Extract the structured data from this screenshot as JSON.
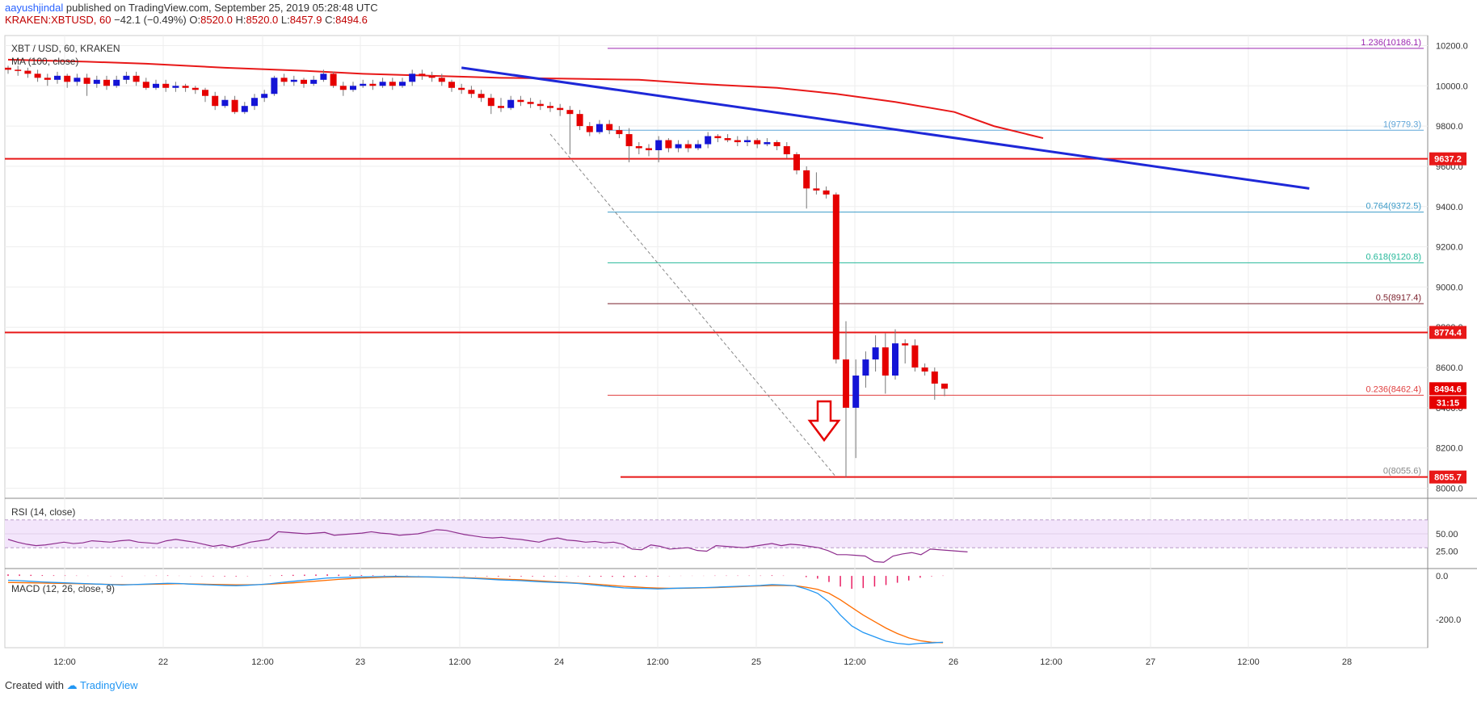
{
  "header": {
    "author": "aayushjindal",
    "published": "published on TradingView.com, September 25, 2019 05:28:48 UTC",
    "symbol": "KRAKEN:XBTUSD, 60",
    "change": "−42.1 (−0.49%)",
    "o_label": "O:",
    "o_value": "8520.0",
    "h_label": "H:",
    "h_value": "8520.0",
    "l_label": "L:",
    "l_value": "8457.9",
    "c_label": "C:",
    "c_value": "8494.6"
  },
  "footer": {
    "created_with": "Created with",
    "brand": "TradingView"
  },
  "colors": {
    "up": "#1414d6",
    "down": "#e50000",
    "ma": "#e81818",
    "trendline": "#1e28d8",
    "resistance": "#e81818",
    "rsi": "#8e2e8e",
    "rsi_band": "#f3e5fb",
    "macd": "#2196f3",
    "signal": "#ff6d00",
    "hist": "#e91e63"
  },
  "chart_data": [
    {
      "type": "candlestick",
      "title": "XBT / USD, 60, KRAKEN",
      "indicator_label": "MA (100, close)",
      "x_ticks": [
        "12:00",
        "22",
        "12:00",
        "23",
        "12:00",
        "24",
        "12:00",
        "25",
        "12:00",
        "26",
        "12:00",
        "27",
        "12:00",
        "28"
      ],
      "ylim": [
        7950,
        10250
      ],
      "y_ticks": [
        10200,
        10000,
        9800,
        9600,
        9400,
        9200,
        9000,
        8800,
        8600,
        8400,
        8200,
        8000
      ],
      "y_tick_labels": [
        "10200.0",
        "10000.0",
        "9800.0",
        "9600.0",
        "9400.0",
        "9200.0",
        "9000.0",
        "8800.0",
        "8600.0",
        "8400.0",
        "8200.0",
        "8000.0"
      ],
      "candles": [
        [
          10090,
          10080,
          10100,
          10060
        ],
        [
          10080,
          10075,
          10100,
          10050
        ],
        [
          10075,
          10060,
          10090,
          10040
        ],
        [
          10060,
          10040,
          10080,
          10020
        ],
        [
          10040,
          10030,
          10060,
          10000
        ],
        [
          10030,
          10050,
          10070,
          10010
        ],
        [
          10050,
          10020,
          10060,
          9990
        ],
        [
          10020,
          10040,
          10060,
          10000
        ],
        [
          10040,
          10010,
          10060,
          9950
        ],
        [
          10010,
          10030,
          10050,
          9990
        ],
        [
          10030,
          10000,
          10050,
          9980
        ],
        [
          10000,
          10030,
          10050,
          9990
        ],
        [
          10030,
          10050,
          10070,
          10010
        ],
        [
          10050,
          10020,
          10070,
          10000
        ],
        [
          10020,
          9990,
          10040,
          9980
        ],
        [
          9990,
          10010,
          10030,
          9980
        ],
        [
          10010,
          9990,
          10030,
          9970
        ],
        [
          9990,
          10000,
          10020,
          9970
        ],
        [
          10000,
          9990,
          10010,
          9970
        ],
        [
          9990,
          9980,
          10000,
          9960
        ],
        [
          9980,
          9950,
          9990,
          9920
        ],
        [
          9950,
          9900,
          9970,
          9880
        ],
        [
          9900,
          9930,
          9950,
          9890
        ],
        [
          9930,
          9870,
          9950,
          9860
        ],
        [
          9870,
          9900,
          9920,
          9860
        ],
        [
          9900,
          9940,
          9960,
          9880
        ],
        [
          9940,
          9960,
          9980,
          9920
        ],
        [
          9960,
          10040,
          10050,
          9950
        ],
        [
          10040,
          10020,
          10060,
          10000
        ],
        [
          10020,
          10030,
          10050,
          10000
        ],
        [
          10030,
          10010,
          10040,
          9990
        ],
        [
          10010,
          10030,
          10050,
          10000
        ],
        [
          10030,
          10060,
          10080,
          10020
        ],
        [
          10060,
          10000,
          10070,
          9990
        ],
        [
          10000,
          9980,
          10020,
          9950
        ],
        [
          9980,
          10000,
          10020,
          9970
        ],
        [
          10000,
          10010,
          10030,
          9990
        ],
        [
          10010,
          10000,
          10030,
          9980
        ],
        [
          10000,
          10020,
          10040,
          9990
        ],
        [
          10020,
          10000,
          10040,
          9980
        ],
        [
          10000,
          10020,
          10040,
          9990
        ],
        [
          10020,
          10060,
          10080,
          10000
        ],
        [
          10060,
          10050,
          10080,
          10030
        ],
        [
          10050,
          10040,
          10070,
          10020
        ],
        [
          10040,
          10020,
          10060,
          10000
        ],
        [
          10020,
          9990,
          10030,
          9970
        ],
        [
          9990,
          9980,
          10010,
          9960
        ],
        [
          9980,
          9960,
          10000,
          9940
        ],
        [
          9960,
          9940,
          9980,
          9920
        ],
        [
          9940,
          9900,
          9960,
          9860
        ],
        [
          9900,
          9890,
          9940,
          9870
        ],
        [
          9890,
          9930,
          9950,
          9880
        ],
        [
          9930,
          9920,
          9950,
          9900
        ],
        [
          9920,
          9910,
          9940,
          9890
        ],
        [
          9910,
          9900,
          9930,
          9880
        ],
        [
          9900,
          9890,
          9920,
          9870
        ],
        [
          9890,
          9880,
          9910,
          9850
        ],
        [
          9880,
          9860,
          9900,
          9660
        ],
        [
          9860,
          9800,
          9880,
          9780
        ],
        [
          9800,
          9770,
          9820,
          9750
        ],
        [
          9770,
          9810,
          9830,
          9760
        ],
        [
          9810,
          9780,
          9830,
          9760
        ],
        [
          9780,
          9760,
          9800,
          9740
        ],
        [
          9760,
          9700,
          9790,
          9620
        ],
        [
          9700,
          9690,
          9720,
          9660
        ],
        [
          9690,
          9680,
          9710,
          9650
        ],
        [
          9680,
          9730,
          9750,
          9620
        ],
        [
          9730,
          9690,
          9740,
          9670
        ],
        [
          9690,
          9710,
          9730,
          9670
        ],
        [
          9710,
          9690,
          9730,
          9670
        ],
        [
          9690,
          9710,
          9730,
          9680
        ],
        [
          9710,
          9750,
          9770,
          9690
        ],
        [
          9750,
          9740,
          9760,
          9720
        ],
        [
          9740,
          9730,
          9760,
          9720
        ],
        [
          9730,
          9720,
          9750,
          9700
        ],
        [
          9720,
          9730,
          9750,
          9700
        ],
        [
          9730,
          9710,
          9740,
          9690
        ],
        [
          9710,
          9720,
          9740,
          9700
        ],
        [
          9720,
          9700,
          9730,
          9680
        ],
        [
          9700,
          9660,
          9720,
          9640
        ],
        [
          9660,
          9580,
          9670,
          9560
        ],
        [
          9580,
          9490,
          9600,
          9390
        ],
        [
          9490,
          9480,
          9570,
          9460
        ],
        [
          9480,
          9460,
          9500,
          9440
        ],
        [
          9460,
          8640,
          9470,
          8620
        ],
        [
          8640,
          8400,
          8830,
          8055.6
        ],
        [
          8400,
          8560,
          8640,
          8150
        ],
        [
          8560,
          8640,
          8680,
          8500
        ],
        [
          8640,
          8700,
          8760,
          8580
        ],
        [
          8700,
          8560,
          8770,
          8470
        ],
        [
          8560,
          8720,
          8790,
          8540
        ],
        [
          8720,
          8710,
          8740,
          8620
        ],
        [
          8710,
          8600,
          8740,
          8580
        ],
        [
          8600,
          8580,
          8620,
          8560
        ],
        [
          8580,
          8520,
          8600,
          8440
        ],
        [
          8520,
          8494.6,
          8520,
          8457.9
        ]
      ],
      "ma100": [
        [
          0,
          10130
        ],
        [
          8,
          10120
        ],
        [
          14,
          10110
        ],
        [
          22,
          10090
        ],
        [
          30,
          10075
        ],
        [
          36,
          10060
        ],
        [
          43,
          10050
        ],
        [
          50,
          10040
        ],
        [
          58,
          10035
        ],
        [
          64,
          10030
        ],
        [
          70,
          10010
        ],
        [
          78,
          9990
        ],
        [
          84,
          9960
        ],
        [
          90,
          9920
        ],
        [
          96,
          9870
        ],
        [
          100,
          9800
        ],
        [
          105,
          9740
        ]
      ],
      "trendline": [
        [
          46,
          10090
        ],
        [
          132,
          9490
        ]
      ],
      "fib_levels": [
        {
          "ratio": "1.236",
          "value": 10186.1,
          "label": "1.236(10186.1)",
          "color": "#9c27b0"
        },
        {
          "ratio": "1",
          "value": 9779.3,
          "label": "1(9779.3)",
          "color": "#5fa5d8"
        },
        {
          "ratio": "0.764",
          "value": 9372.5,
          "label": "0.764(9372.5)",
          "color": "#3c9bc8"
        },
        {
          "ratio": "0.618",
          "value": 9120.8,
          "label": "0.618(9120.8)",
          "color": "#25b89a"
        },
        {
          "ratio": "0.5",
          "value": 8917.4,
          "label": "0.5(8917.4)",
          "color": "#7a1f2b"
        },
        {
          "ratio": "0.236",
          "value": 8462.4,
          "label": "0.236(8462.4)",
          "color": "#e04040"
        },
        {
          "ratio": "0",
          "value": 8055.6,
          "label": "0(8055.6)",
          "color": "#888888"
        }
      ],
      "horizontal_levels": [
        {
          "value": 9637.2,
          "label": "9637.2"
        },
        {
          "value": 8774.4,
          "label": "8774.4"
        }
      ],
      "support_line": {
        "value": 8055.7,
        "label": "8055.7"
      },
      "price_label": {
        "value": 8494.6,
        "label": "8494.6"
      },
      "countdown": "31:15"
    },
    {
      "type": "line",
      "title": "RSI (14, close)",
      "ylim": [
        0,
        100
      ],
      "band": [
        30,
        70
      ],
      "y_tick_labels": [
        "50.00",
        "25.00"
      ],
      "values": [
        42,
        38,
        35,
        33,
        34,
        36,
        38,
        36,
        37,
        40,
        39,
        38,
        40,
        41,
        38,
        37,
        36,
        40,
        42,
        40,
        38,
        35,
        32,
        34,
        31,
        34,
        38,
        40,
        42,
        53,
        52,
        51,
        50,
        51,
        52,
        48,
        49,
        50,
        51,
        53,
        51,
        50,
        48,
        49,
        50,
        53,
        56,
        55,
        52,
        49,
        47,
        45,
        44,
        45,
        43,
        42,
        40,
        38,
        42,
        44,
        41,
        40,
        38,
        39,
        37,
        38,
        35,
        28,
        27,
        34,
        32,
        28,
        29,
        30,
        26,
        25,
        33,
        32,
        31,
        30,
        32,
        34,
        36,
        33,
        35,
        34,
        32,
        30,
        26,
        20,
        20,
        19,
        18,
        10,
        9,
        18,
        21,
        23,
        20,
        28,
        27,
        26,
        25,
        24
      ]
    },
    {
      "type": "line",
      "title": "MACD (12, 26, close, 9)",
      "ylim": [
        -330,
        30
      ],
      "y_tick_labels": [
        "0.0",
        "-200.0"
      ],
      "macd": [
        -20,
        -22,
        -25,
        -28,
        -30,
        -32,
        -34,
        -36,
        -38,
        -40,
        -42,
        -40,
        -38,
        -36,
        -34,
        -35,
        -38,
        -40,
        -42,
        -44,
        -45,
        -43,
        -40,
        -36,
        -30,
        -25,
        -20,
        -15,
        -10,
        -8,
        -6,
        -5,
        -4,
        -3,
        -2,
        -3,
        -4,
        -5,
        -6,
        -8,
        -10,
        -12,
        -15,
        -18,
        -20,
        -22,
        -25,
        -28,
        -30,
        -32,
        -35,
        -40,
        -45,
        -50,
        -55,
        -57,
        -58,
        -60,
        -58,
        -56,
        -55,
        -54,
        -52,
        -50,
        -48,
        -46,
        -44,
        -40,
        -42,
        -45,
        -60,
        -80,
        -120,
        -180,
        -230,
        -260,
        -280,
        -300,
        -310,
        -315,
        -310,
        -308,
        -305
      ],
      "signal": [
        -30,
        -31,
        -32,
        -33,
        -34,
        -35,
        -36,
        -37,
        -38,
        -39,
        -40,
        -40,
        -39,
        -38,
        -37,
        -36,
        -37,
        -38,
        -39,
        -40,
        -41,
        -41,
        -40,
        -38,
        -35,
        -32,
        -28,
        -24,
        -20,
        -16,
        -13,
        -10,
        -8,
        -6,
        -5,
        -5,
        -5,
        -5,
        -6,
        -7,
        -8,
        -10,
        -12,
        -14,
        -16,
        -18,
        -21,
        -24,
        -27,
        -30,
        -33,
        -36,
        -40,
        -44,
        -48,
        -51,
        -54,
        -56,
        -57,
        -57,
        -56,
        -55,
        -54,
        -52,
        -50,
        -48,
        -46,
        -44,
        -44,
        -45,
        -52,
        -62,
        -80,
        -110,
        -145,
        -180,
        -210,
        -240,
        -265,
        -285,
        -298,
        -305,
        -307
      ]
    }
  ]
}
